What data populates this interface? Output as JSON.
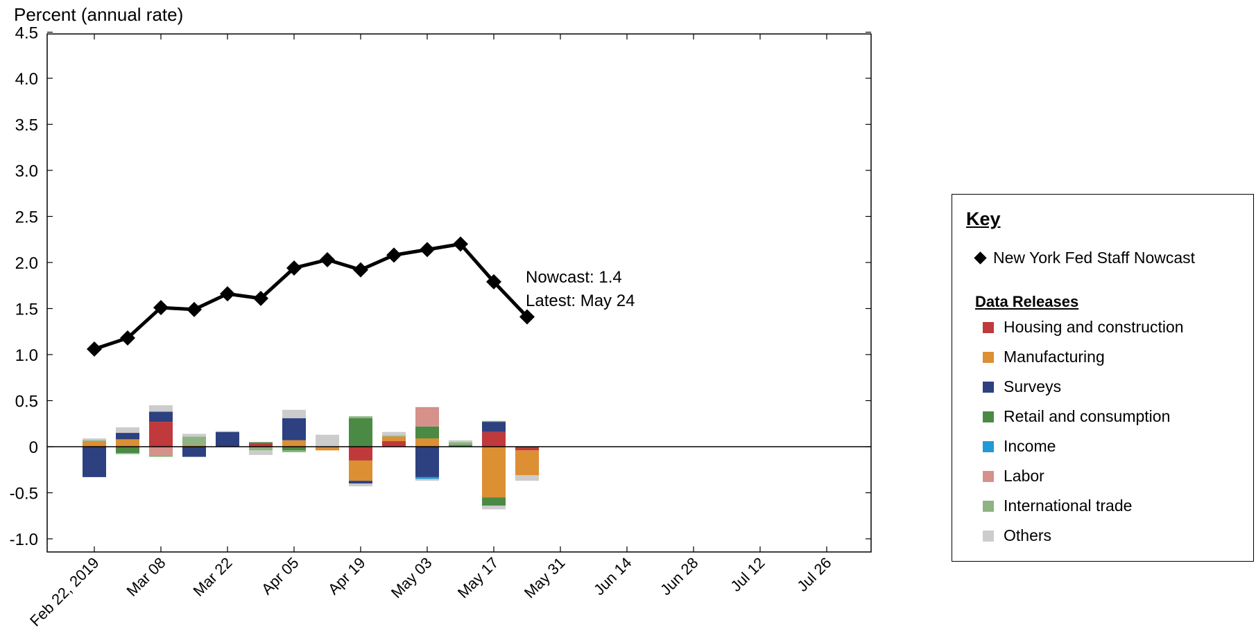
{
  "chart_data": {
    "type": "bar",
    "ylabel": "Percent (annual rate)",
    "ylim": [
      -1.15,
      4.5
    ],
    "yticks": [
      "4.5",
      "4.0",
      "3.5",
      "3.0",
      "2.5",
      "2.0",
      "1.5",
      "1.0",
      "0.5",
      "0",
      "-0.5",
      "-1.0"
    ],
    "ytick_values": [
      4.5,
      4.0,
      3.5,
      3.0,
      2.5,
      2.0,
      1.5,
      1.0,
      0.5,
      0,
      -0.5,
      -1.0
    ],
    "xticks": [
      "Feb 22, 2019",
      "Mar 08",
      "Mar 22",
      "Apr 05",
      "Apr 19",
      "May 03",
      "May 17",
      "May 31",
      "Jun 14",
      "Jun 28",
      "Jul 12",
      "Jul 26"
    ],
    "x": [
      "2019-02-22",
      "2019-03-01",
      "2019-03-08",
      "2019-03-15",
      "2019-03-22",
      "2019-03-29",
      "2019-04-05",
      "2019-04-12",
      "2019-04-19",
      "2019-04-26",
      "2019-05-03",
      "2019-05-10",
      "2019-05-17",
      "2019-05-24"
    ],
    "nowcast": {
      "name": "New York Fed Staff Nowcast",
      "values": [
        1.06,
        1.18,
        1.51,
        1.49,
        1.66,
        1.61,
        1.94,
        2.03,
        1.92,
        2.08,
        2.14,
        2.2,
        1.79,
        1.41
      ]
    },
    "series": [
      {
        "name": "Housing and construction",
        "color": "#c0393b",
        "values": [
          0,
          0,
          0.27,
          0,
          0,
          0.04,
          0,
          0,
          -0.15,
          0.06,
          0,
          0,
          0.16,
          -0.04
        ]
      },
      {
        "name": "Manufacturing",
        "color": "#dc8f33",
        "values": [
          0.06,
          0.08,
          0,
          0.02,
          0,
          0,
          0.07,
          -0.04,
          -0.22,
          0.05,
          0.09,
          0,
          -0.55,
          -0.27
        ]
      },
      {
        "name": "Surveys",
        "color": "#2d4080",
        "values": [
          -0.33,
          0.07,
          0.11,
          -0.11,
          0.16,
          0,
          0.24,
          0,
          -0.03,
          0,
          -0.33,
          0,
          0.11,
          0
        ]
      },
      {
        "name": "Retail and consumption",
        "color": "#4a8a45",
        "values": [
          0,
          -0.07,
          0,
          0,
          0,
          0.01,
          -0.04,
          0,
          0.31,
          0,
          0.13,
          0.02,
          -0.09,
          0
        ]
      },
      {
        "name": "Income",
        "color": "#1f9ad6",
        "values": [
          0,
          0,
          0,
          0,
          0,
          0,
          0,
          0,
          0,
          0,
          -0.02,
          0,
          0,
          0
        ]
      },
      {
        "name": "Labor",
        "color": "#d5918a",
        "values": [
          0,
          0,
          -0.09,
          0,
          0,
          0,
          0,
          0,
          0,
          0,
          0.21,
          0,
          0,
          0
        ]
      },
      {
        "name": "International trade",
        "color": "#8db482",
        "values": [
          0.01,
          -0.01,
          -0.02,
          0.09,
          0,
          -0.04,
          -0.02,
          0,
          0.02,
          0.01,
          0,
          0.03,
          0.01,
          0
        ]
      },
      {
        "name": "Others",
        "color": "#cccccc",
        "values": [
          0.02,
          0.06,
          0.07,
          0.03,
          0.01,
          -0.05,
          0.09,
          0.13,
          -0.03,
          0.04,
          -0.02,
          0.02,
          -0.04,
          -0.06
        ]
      }
    ],
    "annotation": {
      "line1": "Nowcast:  1.4",
      "line2": "Latest: May 24"
    },
    "grid": false,
    "legend_position": "right"
  },
  "legend": {
    "key_title": "Key",
    "nowcast_label": "New York Fed Staff Nowcast",
    "releases_title": "Data Releases",
    "items": [
      {
        "label": "Housing and construction",
        "color": "#c0393b"
      },
      {
        "label": "Manufacturing",
        "color": "#dc8f33"
      },
      {
        "label": "Surveys",
        "color": "#2d4080"
      },
      {
        "label": "Retail and consumption",
        "color": "#4a8a45"
      },
      {
        "label": "Income",
        "color": "#1f9ad6"
      },
      {
        "label": "Labor",
        "color": "#d5918a"
      },
      {
        "label": "International trade",
        "color": "#8db482"
      },
      {
        "label": "Others",
        "color": "#cccccc"
      }
    ]
  }
}
